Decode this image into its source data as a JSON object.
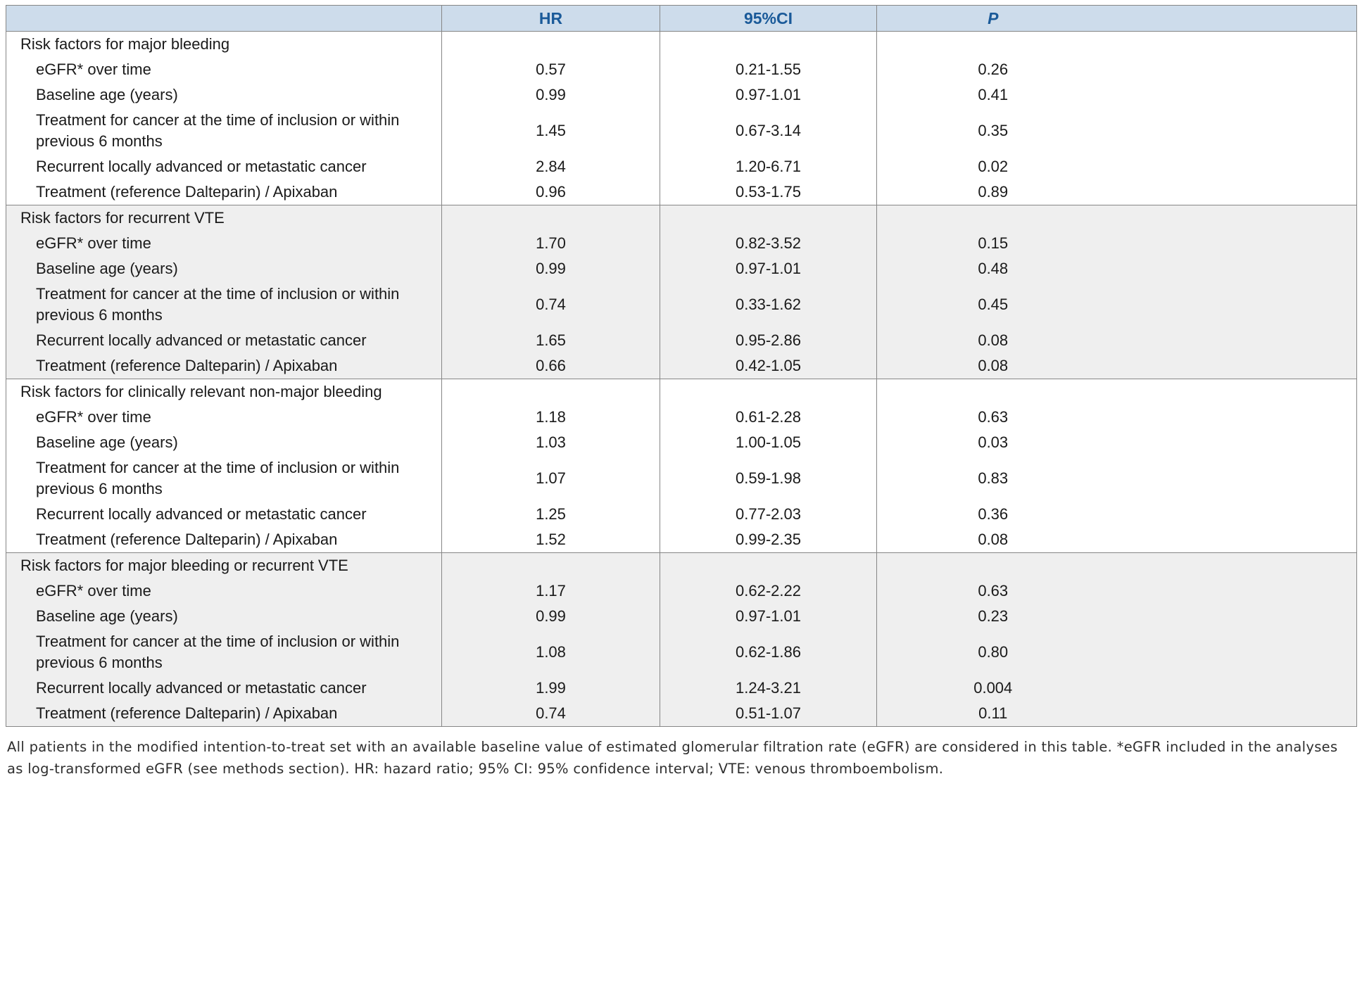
{
  "header": {
    "columns": [
      "HR",
      "95%CI",
      "P"
    ]
  },
  "sections": [
    {
      "title": "Risk factors for major bleeding",
      "shaded": false,
      "rows": [
        {
          "label": "eGFR* over time",
          "hr": "0.57",
          "ci": "0.21-1.55",
          "p": "0.26"
        },
        {
          "label": "Baseline age (years)",
          "hr": "0.99",
          "ci": "0.97-1.01",
          "p": "0.41"
        },
        {
          "label": "Treatment for cancer at the time of inclusion or within previous 6 months",
          "hr": "1.45",
          "ci": "0.67-3.14",
          "p": "0.35"
        },
        {
          "label": "Recurrent locally advanced or metastatic cancer",
          "hr": "2.84",
          "ci": "1.20-6.71",
          "p": "0.02"
        },
        {
          "label": "Treatment (reference Dalteparin) / Apixaban",
          "hr": "0.96",
          "ci": "0.53-1.75",
          "p": "0.89"
        }
      ]
    },
    {
      "title": "Risk factors for recurrent VTE",
      "shaded": true,
      "rows": [
        {
          "label": "eGFR* over time",
          "hr": "1.70",
          "ci": "0.82-3.52",
          "p": "0.15"
        },
        {
          "label": "Baseline age (years)",
          "hr": "0.99",
          "ci": "0.97-1.01",
          "p": "0.48"
        },
        {
          "label": "Treatment for cancer at the time of inclusion or within previous 6 months",
          "hr": "0.74",
          "ci": "0.33-1.62",
          "p": "0.45"
        },
        {
          "label": "Recurrent locally advanced or metastatic cancer",
          "hr": "1.65",
          "ci": "0.95-2.86",
          "p": "0.08"
        },
        {
          "label": "Treatment (reference Dalteparin) / Apixaban",
          "hr": "0.66",
          "ci": "0.42-1.05",
          "p": "0.08"
        }
      ]
    },
    {
      "title": "Risk factors for clinically relevant non-major bleeding",
      "shaded": false,
      "rows": [
        {
          "label": "eGFR* over time",
          "hr": "1.18",
          "ci": "0.61-2.28",
          "p": "0.63"
        },
        {
          "label": "Baseline age (years)",
          "hr": "1.03",
          "ci": "1.00-1.05",
          "p": "0.03"
        },
        {
          "label": "Treatment for cancer at the time of inclusion or within previous 6 months",
          "hr": "1.07",
          "ci": "0.59-1.98",
          "p": "0.83"
        },
        {
          "label": "Recurrent locally advanced or metastatic cancer",
          "hr": "1.25",
          "ci": "0.77-2.03",
          "p": "0.36"
        },
        {
          "label": "Treatment (reference Dalteparin) / Apixaban",
          "hr": "1.52",
          "ci": "0.99-2.35",
          "p": "0.08"
        }
      ]
    },
    {
      "title": "Risk factors for major bleeding or recurrent VTE",
      "shaded": true,
      "rows": [
        {
          "label": "eGFR* over time",
          "hr": "1.17",
          "ci": "0.62-2.22",
          "p": "0.63"
        },
        {
          "label": "Baseline age (years)",
          "hr": "0.99",
          "ci": "0.97-1.01",
          "p": "0.23"
        },
        {
          "label": "Treatment for cancer at the time of inclusion or within previous 6 months",
          "hr": "1.08",
          "ci": "0.62-1.86",
          "p": "0.80"
        },
        {
          "label": "Recurrent locally advanced or metastatic cancer",
          "hr": "1.99",
          "ci": "1.24-3.21",
          "p": "0.004"
        },
        {
          "label": "Treatment (reference Dalteparin) / Apixaban",
          "hr": "0.74",
          "ci": "0.51-1.07",
          "p": "0.11"
        }
      ]
    }
  ],
  "footnote": "All patients in the modified intention-to-treat set with an available baseline value of estimated glomerular filtration rate (eGFR) are considered in this table. *eGFR included in the analyses as log-transformed eGFR (see methods section). HR: hazard ratio; 95% CI: 95% confidence interval; VTE: venous thromboembolism.",
  "colors": {
    "header_bg": "#cddceb",
    "header_text": "#1a5a99",
    "shade_bg": "#efefef",
    "line": "#868686",
    "text": "#1a1a1a"
  }
}
